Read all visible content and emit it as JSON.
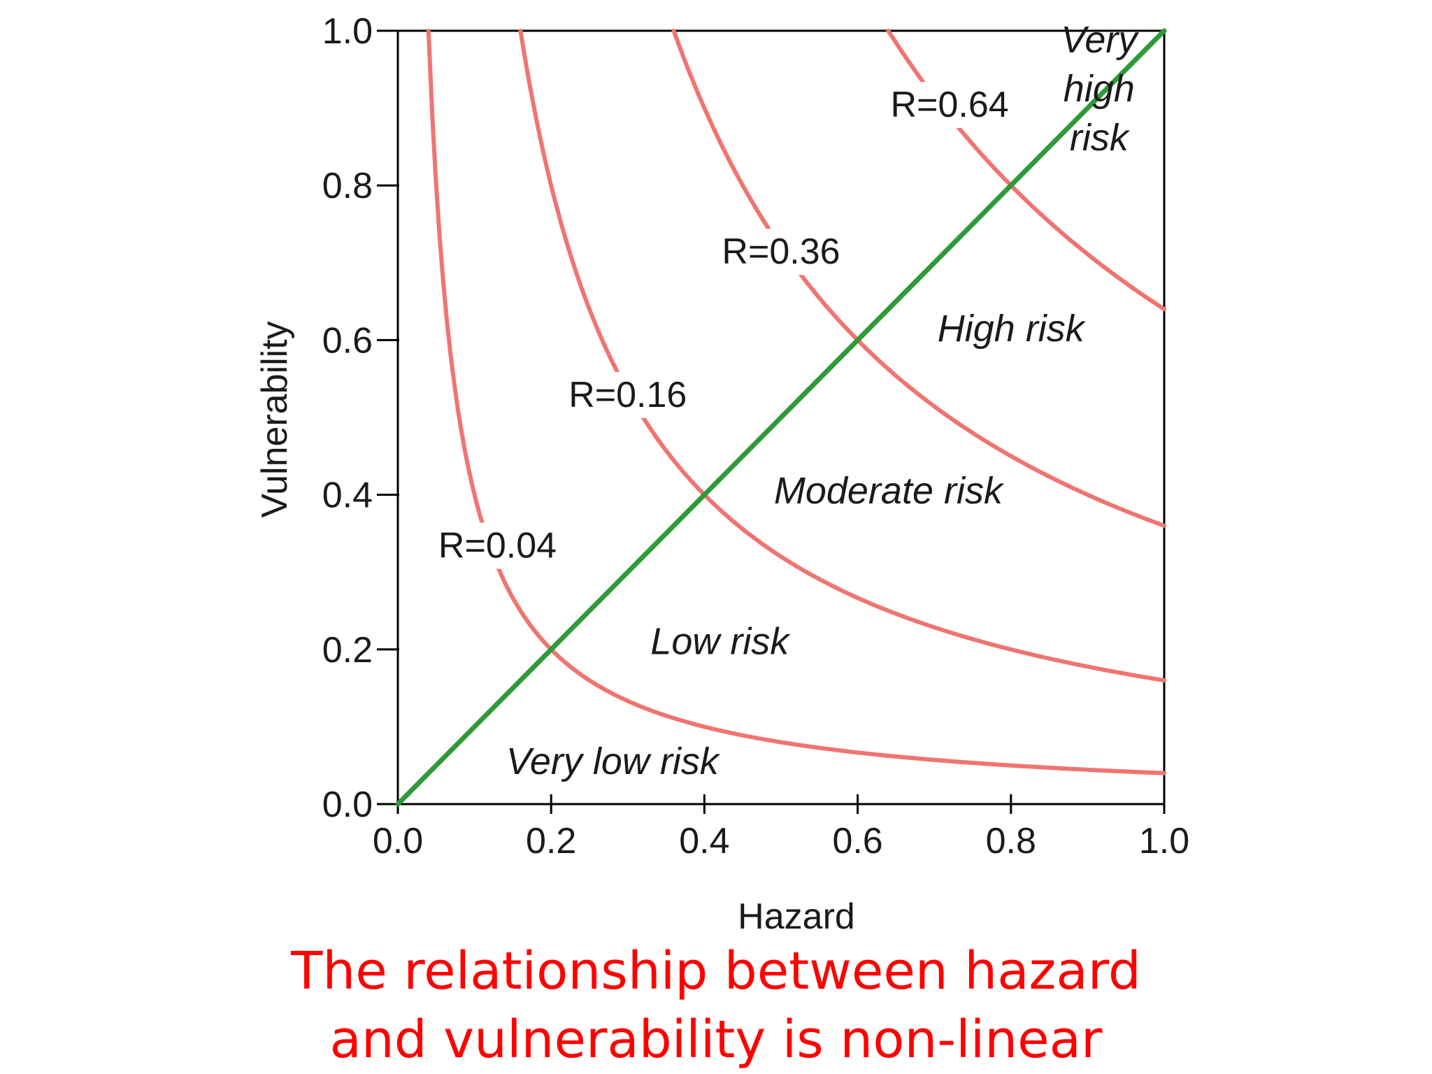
{
  "chart_data": {
    "type": "line",
    "xlabel": "Hazard",
    "ylabel": "Vulnerability",
    "xlim": [
      0,
      1
    ],
    "ylim": [
      0,
      1
    ],
    "xticks": [
      "0.0",
      "0.2",
      "0.4",
      "0.6",
      "0.8",
      "1.0"
    ],
    "yticks": [
      "0.0",
      "0.2",
      "0.4",
      "0.6",
      "0.8",
      "1.0"
    ],
    "series": [
      {
        "name": "R=0.04",
        "R": 0.04,
        "color": "#f07470"
      },
      {
        "name": "R=0.16",
        "R": 0.16,
        "color": "#f07470"
      },
      {
        "name": "R=0.36",
        "R": 0.36,
        "color": "#f07470"
      },
      {
        "name": "R=0.64",
        "R": 0.64,
        "color": "#f07470"
      }
    ],
    "diagonal": {
      "x": [
        0,
        1
      ],
      "y": [
        0,
        1
      ],
      "color": "#2f9a38"
    },
    "zones": [
      {
        "lines": [
          "Very low risk"
        ],
        "x": 0.28,
        "y": 0.055
      },
      {
        "lines": [
          "Low risk"
        ],
        "x": 0.42,
        "y": 0.21
      },
      {
        "lines": [
          "Moderate risk"
        ],
        "x": 0.64,
        "y": 0.405
      },
      {
        "lines": [
          "High risk"
        ],
        "x": 0.8,
        "y": 0.615
      },
      {
        "lines": [
          "Very",
          "high",
          "risk"
        ],
        "x": 0.915,
        "y": 0.925
      }
    ],
    "curve_labels": [
      {
        "text": "R=0.04",
        "x": 0.13,
        "y": 0.335
      },
      {
        "text": "R=0.16",
        "x": 0.3,
        "y": 0.53
      },
      {
        "text": "R=0.36",
        "x": 0.5,
        "y": 0.715
      },
      {
        "text": "R=0.64",
        "x": 0.72,
        "y": 0.905
      }
    ]
  },
  "caption": {
    "line1": "The relationship between hazard",
    "line2": "and vulnerability is non-linear"
  }
}
